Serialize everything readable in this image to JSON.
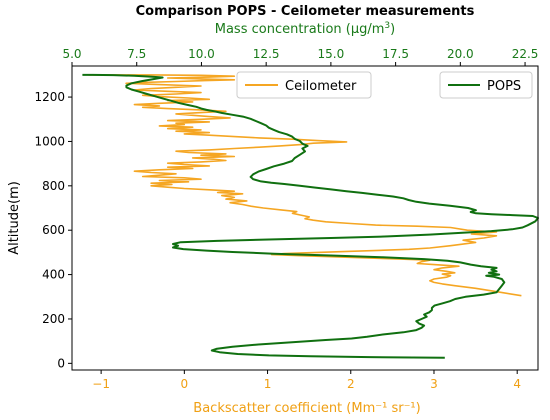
{
  "chart_data": {
    "type": "line",
    "title": "Comparison POPS - Ceilometer measurements",
    "y_axis": {
      "label": "Altitude(m)",
      "range": [
        -30,
        1340
      ],
      "ticks": [
        0,
        200,
        400,
        600,
        800,
        1000,
        1200
      ]
    },
    "x_bottom": {
      "label": "Backscatter coefficient (Mm⁻¹ sr⁻¹)",
      "range": [
        -1.35,
        4.25
      ],
      "ticks": [
        -1,
        0,
        1,
        2,
        3,
        4
      ],
      "tick_labels": [
        "−1",
        "0",
        "1",
        "2",
        "3",
        "4"
      ],
      "color": "#f0a014"
    },
    "x_top": {
      "label_text": "Mass concentration (μg/m",
      "label_sup": "3",
      "label_close": ")",
      "range": [
        5.0,
        23.0
      ],
      "ticks": [
        5.0,
        7.5,
        10.0,
        12.5,
        15.0,
        17.5,
        20.0,
        22.5
      ],
      "tick_labels": [
        "5.0",
        "7.5",
        "10.0",
        "12.5",
        "15.0",
        "17.5",
        "20.0",
        "22.5"
      ],
      "color": "#1a7a1a"
    },
    "legend": {
      "ceilometer": "Ceilometer",
      "pops": "POPS"
    },
    "grid": false,
    "series": [
      {
        "name": "Ceilometer",
        "axis": "bottom",
        "color": "#f5a623",
        "points": [
          [
            4.05,
            305
          ],
          [
            3.8,
            320
          ],
          [
            3.5,
            338
          ],
          [
            3.25,
            350
          ],
          [
            3.1,
            358
          ],
          [
            3.0,
            365
          ],
          [
            2.95,
            372
          ],
          [
            3.0,
            380
          ],
          [
            3.15,
            388
          ],
          [
            3.2,
            395
          ],
          [
            3.1,
            402
          ],
          [
            3.25,
            408
          ],
          [
            3.15,
            415
          ],
          [
            3.0,
            422
          ],
          [
            3.1,
            430
          ],
          [
            3.3,
            438
          ],
          [
            3.0,
            445
          ],
          [
            2.8,
            450
          ],
          [
            2.85,
            458
          ],
          [
            2.95,
            465
          ],
          [
            2.6,
            470
          ],
          [
            2.2,
            475
          ],
          [
            1.8,
            480
          ],
          [
            1.4,
            485
          ],
          [
            1.05,
            490
          ],
          [
            1.2,
            495
          ],
          [
            1.6,
            500
          ],
          [
            2.0,
            505
          ],
          [
            2.4,
            510
          ],
          [
            2.7,
            514
          ],
          [
            2.95,
            520
          ],
          [
            3.2,
            530
          ],
          [
            3.5,
            545
          ],
          [
            3.35,
            555
          ],
          [
            3.6,
            565
          ],
          [
            3.75,
            575
          ],
          [
            3.45,
            583
          ],
          [
            3.75,
            592
          ],
          [
            3.4,
            600
          ],
          [
            3.2,
            612
          ],
          [
            2.8,
            618
          ],
          [
            2.3,
            623
          ],
          [
            2.0,
            630
          ],
          [
            1.7,
            638
          ],
          [
            1.55,
            645
          ],
          [
            1.45,
            652
          ],
          [
            1.5,
            660
          ],
          [
            1.4,
            668
          ],
          [
            1.3,
            676
          ],
          [
            1.35,
            684
          ],
          [
            1.15,
            692
          ],
          [
            0.95,
            700
          ],
          [
            0.8,
            708
          ],
          [
            0.7,
            716
          ],
          [
            0.55,
            724
          ],
          [
            0.75,
            732
          ],
          [
            0.5,
            740
          ],
          [
            0.6,
            748
          ],
          [
            0.45,
            756
          ],
          [
            0.7,
            764
          ],
          [
            0.4,
            770
          ],
          [
            0.6,
            776
          ],
          [
            0.3,
            782
          ],
          [
            0.0,
            788
          ],
          [
            -0.2,
            794
          ],
          [
            -0.4,
            800
          ],
          [
            -0.15,
            806
          ],
          [
            -0.4,
            812
          ],
          [
            0.05,
            818
          ],
          [
            -0.3,
            824
          ],
          [
            0.2,
            830
          ],
          [
            0.0,
            836
          ],
          [
            -0.5,
            842
          ],
          [
            -0.3,
            848
          ],
          [
            -0.1,
            854
          ],
          [
            -0.4,
            860
          ],
          [
            -0.6,
            866
          ],
          [
            -0.3,
            872
          ],
          [
            0.1,
            878
          ],
          [
            -0.2,
            884
          ],
          [
            0.3,
            890
          ],
          [
            0.0,
            896
          ],
          [
            -0.2,
            902
          ],
          [
            0.2,
            908
          ],
          [
            0.5,
            914
          ],
          [
            0.35,
            920
          ],
          [
            0.1,
            926
          ],
          [
            0.6,
            932
          ],
          [
            0.2,
            938
          ],
          [
            0.5,
            944
          ],
          [
            0.05,
            950
          ],
          [
            -0.1,
            956
          ],
          [
            0.3,
            962
          ],
          [
            0.6,
            968
          ],
          [
            0.9,
            974
          ],
          [
            1.15,
            980
          ],
          [
            1.4,
            986
          ],
          [
            1.55,
            992
          ],
          [
            1.95,
            998
          ],
          [
            1.6,
            1004
          ],
          [
            1.3,
            1010
          ],
          [
            0.9,
            1016
          ],
          [
            0.6,
            1022
          ],
          [
            0.3,
            1028
          ],
          [
            0.0,
            1034
          ],
          [
            0.3,
            1040
          ],
          [
            -0.1,
            1046
          ],
          [
            0.2,
            1052
          ],
          [
            -0.2,
            1058
          ],
          [
            0.1,
            1064
          ],
          [
            -0.3,
            1070
          ],
          [
            0.0,
            1076
          ],
          [
            -0.1,
            1082
          ],
          [
            0.3,
            1088
          ],
          [
            -0.2,
            1094
          ],
          [
            0.2,
            1100
          ],
          [
            0.55,
            1106
          ],
          [
            0.3,
            1112
          ],
          [
            0.1,
            1118
          ],
          [
            -0.1,
            1124
          ],
          [
            0.2,
            1130
          ],
          [
            0.5,
            1136
          ],
          [
            0.2,
            1142
          ],
          [
            -0.2,
            1148
          ],
          [
            -0.5,
            1154
          ],
          [
            -0.3,
            1160
          ],
          [
            -0.6,
            1166
          ],
          [
            -0.3,
            1172
          ],
          [
            0.1,
            1178
          ],
          [
            -0.2,
            1184
          ],
          [
            0.3,
            1190
          ],
          [
            0.05,
            1196
          ],
          [
            -0.3,
            1202
          ],
          [
            -0.5,
            1208
          ],
          [
            -0.1,
            1214
          ],
          [
            0.2,
            1220
          ],
          [
            -0.2,
            1226
          ],
          [
            -0.6,
            1232
          ],
          [
            -0.4,
            1238
          ],
          [
            -0.1,
            1244
          ],
          [
            0.2,
            1250
          ],
          [
            -0.3,
            1256
          ],
          [
            -0.7,
            1262
          ],
          [
            -0.5,
            1266
          ],
          [
            -0.1,
            1270
          ],
          [
            0.25,
            1274
          ],
          [
            0.6,
            1278
          ],
          [
            0.2,
            1282
          ],
          [
            -0.2,
            1286
          ],
          [
            0.3,
            1290
          ],
          [
            0.6,
            1294
          ],
          [
            0.2,
            1298
          ],
          [
            -0.4,
            1300
          ],
          [
            -0.8,
            1300
          ],
          [
            -1.15,
            1300
          ]
        ]
      },
      {
        "name": "POPS",
        "axis": "top",
        "color": "#107010",
        "points": [
          [
            19.4,
            25
          ],
          [
            16.5,
            28
          ],
          [
            14.2,
            32
          ],
          [
            12.6,
            36
          ],
          [
            11.4,
            42
          ],
          [
            10.7,
            50
          ],
          [
            10.4,
            58
          ],
          [
            10.6,
            66
          ],
          [
            11.2,
            75
          ],
          [
            12.2,
            85
          ],
          [
            13.5,
            95
          ],
          [
            14.8,
            105
          ],
          [
            15.8,
            112
          ],
          [
            16.4,
            120
          ],
          [
            17.0,
            130
          ],
          [
            17.8,
            140
          ],
          [
            18.3,
            150
          ],
          [
            18.5,
            160
          ],
          [
            18.6,
            170
          ],
          [
            18.4,
            180
          ],
          [
            18.3,
            190
          ],
          [
            18.5,
            200
          ],
          [
            18.7,
            210
          ],
          [
            18.6,
            220
          ],
          [
            18.8,
            230
          ],
          [
            18.9,
            240
          ],
          [
            18.9,
            250
          ],
          [
            19.0,
            260
          ],
          [
            19.3,
            270
          ],
          [
            19.6,
            280
          ],
          [
            19.8,
            290
          ],
          [
            20.2,
            300
          ],
          [
            20.9,
            310
          ],
          [
            21.4,
            320
          ],
          [
            21.5,
            335
          ],
          [
            21.6,
            350
          ],
          [
            21.7,
            365
          ],
          [
            21.6,
            380
          ],
          [
            21.3,
            390
          ],
          [
            21.0,
            395
          ],
          [
            21.5,
            400
          ],
          [
            21.1,
            408
          ],
          [
            21.4,
            415
          ],
          [
            21.2,
            422
          ],
          [
            21.4,
            430
          ],
          [
            20.8,
            438
          ],
          [
            20.4,
            445
          ],
          [
            20.0,
            455
          ],
          [
            19.5,
            462
          ],
          [
            18.6,
            470
          ],
          [
            17.0,
            478
          ],
          [
            15.0,
            486
          ],
          [
            12.8,
            494
          ],
          [
            11.2,
            502
          ],
          [
            10.2,
            508
          ],
          [
            9.3,
            515
          ],
          [
            8.9,
            522
          ],
          [
            9.1,
            530
          ],
          [
            8.9,
            538
          ],
          [
            9.2,
            546
          ],
          [
            10.6,
            552
          ],
          [
            12.6,
            558
          ],
          [
            15.0,
            565
          ],
          [
            17.2,
            572
          ],
          [
            18.8,
            580
          ],
          [
            20.0,
            588
          ],
          [
            21.2,
            596
          ],
          [
            22.0,
            604
          ],
          [
            22.4,
            612
          ],
          [
            22.6,
            622
          ],
          [
            22.9,
            640
          ],
          [
            23.0,
            655
          ],
          [
            22.8,
            664
          ],
          [
            22.0,
            668
          ],
          [
            21.2,
            672
          ],
          [
            20.6,
            676
          ],
          [
            20.4,
            682
          ],
          [
            20.6,
            690
          ],
          [
            20.3,
            700
          ],
          [
            19.6,
            710
          ],
          [
            18.8,
            720
          ],
          [
            18.3,
            728
          ],
          [
            18.0,
            736
          ],
          [
            17.8,
            744
          ],
          [
            17.4,
            752
          ],
          [
            16.8,
            760
          ],
          [
            16.2,
            768
          ],
          [
            15.6,
            776
          ],
          [
            15.0,
            784
          ],
          [
            14.4,
            792
          ],
          [
            13.8,
            800
          ],
          [
            13.2,
            808
          ],
          [
            12.7,
            814
          ],
          [
            12.3,
            820
          ],
          [
            12.0,
            830
          ],
          [
            11.9,
            840
          ],
          [
            12.0,
            852
          ],
          [
            12.2,
            864
          ],
          [
            12.5,
            876
          ],
          [
            12.8,
            888
          ],
          [
            13.2,
            900
          ],
          [
            13.5,
            912
          ],
          [
            13.6,
            925
          ],
          [
            13.8,
            940
          ],
          [
            14.0,
            955
          ],
          [
            13.9,
            968
          ],
          [
            14.1,
            980
          ],
          [
            13.9,
            990
          ],
          [
            13.8,
            1002
          ],
          [
            13.6,
            1012
          ],
          [
            13.5,
            1022
          ],
          [
            13.3,
            1032
          ],
          [
            13.0,
            1042
          ],
          [
            12.8,
            1052
          ],
          [
            12.6,
            1062
          ],
          [
            12.5,
            1072
          ],
          [
            12.3,
            1082
          ],
          [
            12.1,
            1092
          ],
          [
            11.9,
            1102
          ],
          [
            11.6,
            1112
          ],
          [
            11.2,
            1120
          ],
          [
            10.8,
            1128
          ],
          [
            10.5,
            1136
          ],
          [
            10.2,
            1142
          ],
          [
            10.0,
            1148
          ],
          [
            9.8,
            1156
          ],
          [
            9.5,
            1164
          ],
          [
            9.1,
            1174
          ],
          [
            8.8,
            1184
          ],
          [
            8.5,
            1194
          ],
          [
            8.2,
            1204
          ],
          [
            7.9,
            1214
          ],
          [
            7.6,
            1224
          ],
          [
            7.3,
            1234
          ],
          [
            7.1,
            1244
          ],
          [
            7.1,
            1252
          ],
          [
            7.3,
            1262
          ],
          [
            7.7,
            1272
          ],
          [
            8.2,
            1282
          ],
          [
            8.5,
            1288
          ],
          [
            8.1,
            1292
          ],
          [
            7.4,
            1296
          ],
          [
            6.6,
            1299
          ],
          [
            5.8,
            1300
          ],
          [
            5.4,
            1300
          ]
        ]
      }
    ]
  }
}
